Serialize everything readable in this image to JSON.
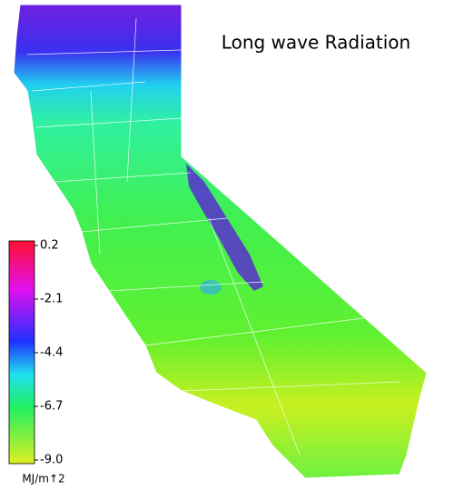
{
  "title": "Long wave Radiation",
  "colorbar": {
    "lim": [
      -9.0,
      0.2
    ],
    "ticks": [
      0.2,
      -2.1,
      -4.4,
      -6.7,
      {
        "value": -9.0,
        "label": "-9.0"
      }
    ],
    "unit": "MJ/m↑2"
  }
}
